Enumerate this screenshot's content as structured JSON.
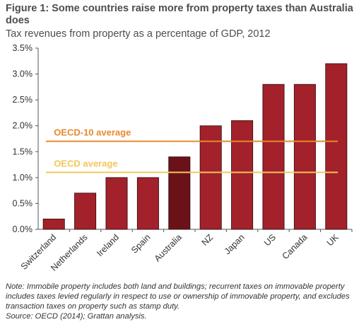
{
  "figure": {
    "title": "Figure 1: Some countries raise more from property taxes than Australia does",
    "subtitle": "Tax revenues from property as a percentage of GDP, 2012",
    "note": "Note: Immobile property includes both land and buildings; recurrent taxes on immovable property includes taxes levied regularly in respect to use or ownership of immovable property, and excludes transaction taxes on property such as stamp duty.",
    "source": "Source: OECD (2014); Grattan analysis."
  },
  "colors": {
    "bar": "#a3212a",
    "highlight": "#6b1219",
    "oecd10": "#e8892e",
    "oecd": "#f2c75c"
  },
  "chart_data": {
    "type": "bar",
    "title": "Tax revenues from property as a percentage of GDP, 2012",
    "categories": [
      "Switzerland",
      "Netherlands",
      "Ireland",
      "Spain",
      "Australia",
      "NZ",
      "Japan",
      "US",
      "Canada",
      "UK"
    ],
    "values": [
      0.2,
      0.7,
      1.0,
      1.0,
      1.4,
      2.0,
      2.1,
      2.8,
      2.8,
      3.2
    ],
    "highlight": "Australia",
    "ylim": [
      0,
      3.5
    ],
    "yticks": [
      "0.0%",
      "0.5%",
      "1.0%",
      "1.5%",
      "2.0%",
      "2.5%",
      "3.0%",
      "3.5%"
    ],
    "reference_lines": [
      {
        "label": "OECD-10 average",
        "value": 1.7
      },
      {
        "label": "OECD average",
        "value": 1.1
      }
    ],
    "grid": false,
    "legend": "none"
  }
}
